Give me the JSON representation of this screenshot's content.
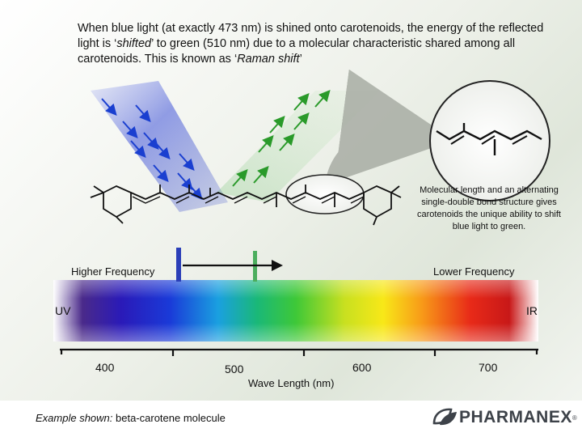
{
  "header": {
    "intro_plain1": "When blue light (at exactly 473 nm) is shined onto carotenoids, the energy of the reflected light is ‘",
    "intro_em1": "shifted",
    "intro_plain2": "’ to green (510 nm) due to a molecular characteristic shared among all carotenoids. This is known as ‘",
    "intro_em2": "Raman shift",
    "intro_plain3": "’"
  },
  "note": "Molecular length and an alternating single-double bond structure gives carotenoids the unique ability to shift blue light to green.",
  "spectrum": {
    "higher_label": "Higher Frequency",
    "lower_label": "Lower Frequency",
    "left_edge": "UV",
    "right_edge": "IR",
    "axis_title": "Wave Length (nm)",
    "ticks": [
      "400",
      "500",
      "600",
      "700"
    ]
  },
  "caption": {
    "em": "Example shown:",
    "text": " beta-carotene molecule"
  },
  "logo": {
    "text": "PHARMANEX",
    "mark": "®"
  },
  "colors": {
    "blue_light": "#1a3fd0",
    "green_light": "#2a9a2a",
    "blue_marker": "#2b3fb8",
    "green_marker": "#4cae5e",
    "brand": "#3d4249"
  }
}
